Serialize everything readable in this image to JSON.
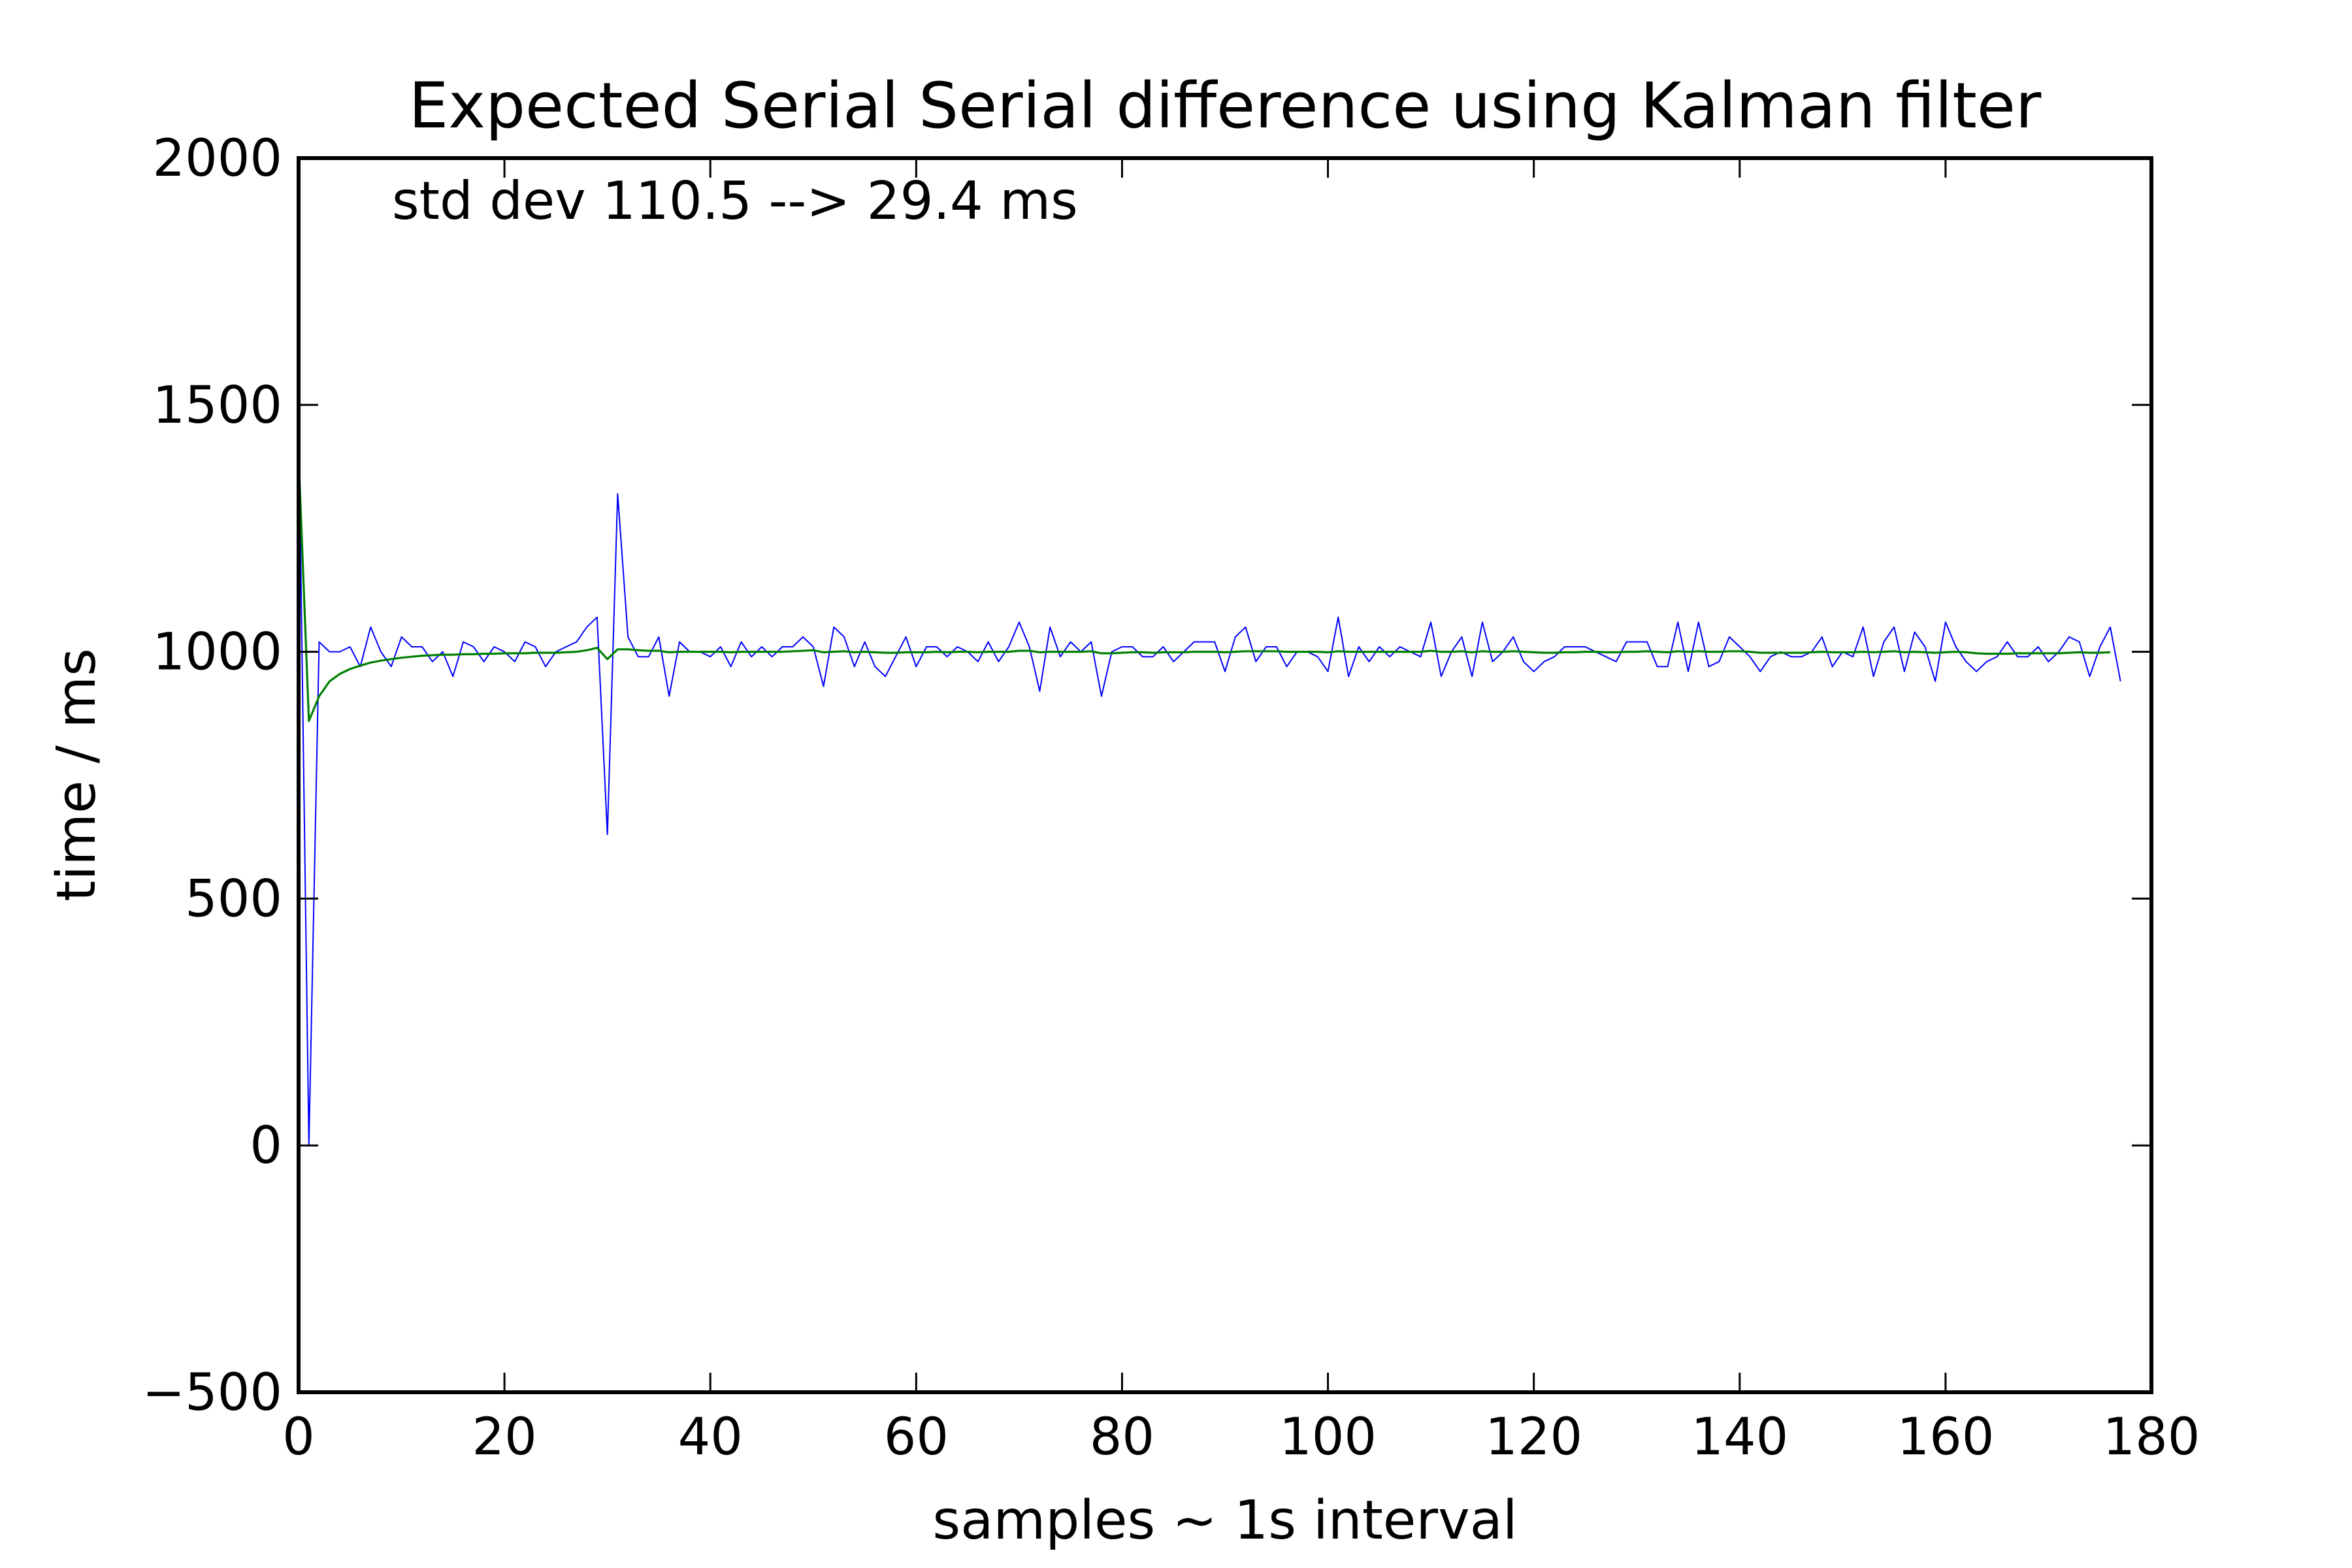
{
  "chart_data": {
    "type": "line",
    "title": "Expected Serial Serial difference using Kalman filter",
    "xlabel": "samples ~ 1s interval",
    "ylabel": "time / ms",
    "xlim": [
      0,
      180
    ],
    "ylim": [
      -500,
      2000
    ],
    "xticks": [
      0,
      20,
      40,
      60,
      80,
      100,
      120,
      140,
      160,
      180
    ],
    "yticks": [
      -500,
      0,
      500,
      1000,
      1500,
      2000
    ],
    "xtick_labels": [
      "0",
      "20",
      "40",
      "60",
      "80",
      "100",
      "120",
      "140",
      "160",
      "180"
    ],
    "ytick_labels": [
      "−500",
      "0",
      "500",
      "1000",
      "1500",
      "2000"
    ],
    "grid": false,
    "annotation": "std dev 110.5 --> 29.4 ms",
    "series": [
      {
        "color": "#0000ff",
        "values": [
          1500,
          0,
          1020,
          1000,
          1000,
          1010,
          970,
          1050,
          1000,
          970,
          1030,
          1010,
          1010,
          980,
          1000,
          950,
          1020,
          1010,
          980,
          1010,
          1000,
          980,
          1020,
          1010,
          970,
          1000,
          1010,
          1020,
          1050,
          1070,
          630,
          1320,
          1030,
          990,
          990,
          1030,
          910,
          1020,
          1000,
          1000,
          990,
          1010,
          970,
          1020,
          990,
          1010,
          990,
          1010,
          1010,
          1030,
          1010,
          930,
          1050,
          1030,
          970,
          1020,
          970,
          950,
          990,
          1030,
          970,
          1010,
          1010,
          990,
          1010,
          1000,
          980,
          1020,
          980,
          1010,
          1060,
          1010,
          920,
          1050,
          990,
          1020,
          1000,
          1020,
          910,
          1000,
          1010,
          1010,
          990,
          990,
          1010,
          980,
          1000,
          1020,
          1020,
          1020,
          960,
          1030,
          1050,
          980,
          1010,
          1010,
          970,
          1000,
          1000,
          990,
          960,
          1070,
          950,
          1010,
          980,
          1010,
          990,
          1010,
          1000,
          990,
          1060,
          950,
          1000,
          1030,
          950,
          1060,
          980,
          1000,
          1030,
          980,
          960,
          980,
          990,
          1010,
          1010,
          1010,
          1000,
          990,
          980,
          1020,
          1020,
          1020,
          970,
          970,
          1060,
          960,
          1060,
          970,
          980,
          1030,
          1010,
          990,
          960,
          990,
          1000,
          990,
          990,
          1000,
          1030,
          970,
          1000,
          990,
          1050,
          950,
          1020,
          1050,
          960,
          1040,
          1010,
          940,
          1060,
          1010,
          980,
          960,
          980,
          990,
          1020,
          990,
          990,
          1010,
          980,
          1000,
          1030,
          1020,
          950,
          1010,
          1050,
          940
        ]
      },
      {
        "color": "#008000",
        "values": [
          1400,
          860,
          910,
          940,
          955,
          965,
          972,
          978,
          982,
          985,
          988,
          990,
          992,
          993,
          994,
          994,
          995,
          995,
          996,
          996,
          997,
          997,
          997,
          998,
          998,
          998,
          999,
          1000,
          1003,
          1008,
          985,
          1005,
          1005,
          1003,
          1002,
          1002,
          999,
          1000,
          1000,
          1000,
          1000,
          1000,
          999,
          1000,
          1000,
          1000,
          1000,
          1000,
          1001,
          1002,
          1003,
          999,
          1000,
          1001,
          999,
          1000,
          999,
          998,
          998,
          999,
          999,
          999,
          1000,
          999,
          1000,
          1000,
          999,
          1000,
          1000,
          1000,
          1002,
          1002,
          999,
          1000,
          1000,
          1000,
          1000,
          1001,
          997,
          997,
          998,
          999,
          999,
          998,
          999,
          999,
          999,
          1000,
          1000,
          1000,
          999,
          1000,
          1001,
          1001,
          1001,
          1001,
          1000,
          1000,
          1000,
          1000,
          999,
          1001,
          1000,
          1000,
          1000,
          1000,
          1000,
          1000,
          1000,
          1000,
          1002,
          1000,
          1000,
          1001,
          999,
          1001,
          1000,
          1000,
          1001,
          1000,
          999,
          998,
          998,
          999,
          999,
          1000,
          1000,
          999,
          999,
          1000,
          1000,
          1001,
          1000,
          999,
          1001,
          1000,
          1001,
          1000,
          1000,
          1001,
          1001,
          1000,
          998,
          998,
          998,
          998,
          998,
          999,
          1000,
          999,
          999,
          999,
          1000,
          999,
          1000,
          1001,
          999,
          1000,
          999,
          998,
          999,
          1000,
          999,
          997,
          996,
          996,
          996,
          997,
          997,
          997,
          997,
          997,
          998,
          999,
          998,
          998,
          999
        ]
      }
    ]
  }
}
